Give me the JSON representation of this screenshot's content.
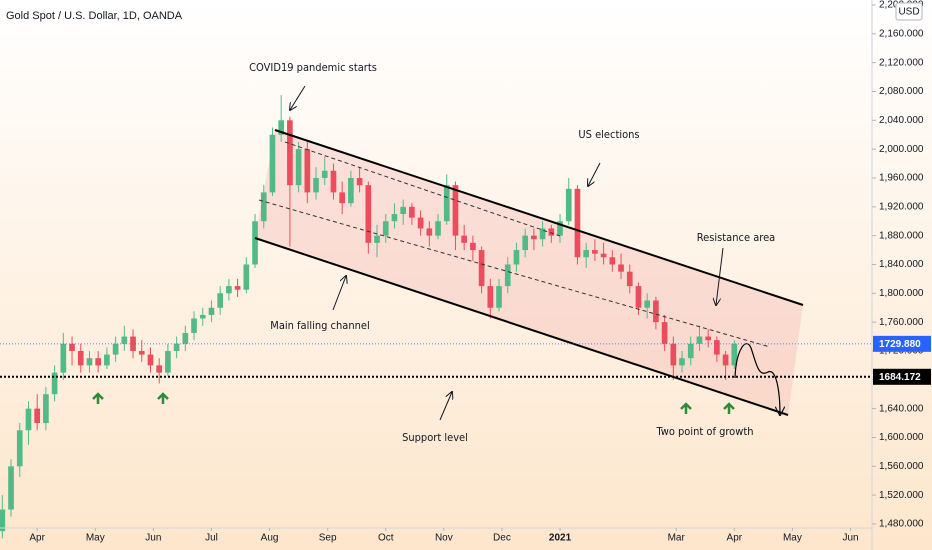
{
  "chart_data": {
    "type": "candlestick",
    "title": "Gold Spot / U.S. Dollar, 1D, OANDA",
    "currency": "USD",
    "colors": {
      "up": "#53b987",
      "down": "#eb4d5c"
    },
    "x": [
      -0.6,
      -0.45,
      -0.3,
      -0.15,
      0,
      0.15,
      0.3,
      0.45,
      0.6,
      0.75,
      0.9,
      1.05,
      1.2,
      1.35,
      1.5,
      1.65,
      1.8,
      1.95,
      2.1,
      2.25,
      2.4,
      2.55,
      2.7,
      2.85,
      3,
      3.15,
      3.3,
      3.45,
      3.6,
      3.75,
      3.9,
      4.05,
      4.2,
      4.35,
      4.5,
      4.65,
      4.8,
      4.95,
      5.1,
      5.25,
      5.4,
      5.55,
      5.7,
      5.85,
      6,
      6.15,
      6.3,
      6.45,
      6.6,
      6.75,
      6.9,
      7.05,
      7.2,
      7.35,
      7.5,
      7.65,
      7.8,
      7.95,
      8.1,
      8.25,
      8.4,
      8.55,
      8.7,
      8.85,
      9,
      9.15,
      9.3,
      9.45,
      9.6,
      9.75,
      9.9,
      10.05,
      10.2,
      10.35,
      10.5,
      10.65,
      10.8,
      10.95,
      11.1,
      11.25,
      11.4,
      11.55,
      11.7,
      11.85,
      12
    ],
    "open": [
      1470,
      1500,
      1560,
      1610,
      1640,
      1620,
      1660,
      1690,
      1730,
      1720,
      1700,
      1710,
      1700,
      1715,
      1730,
      1740,
      1720,
      1715,
      1700,
      1690,
      1720,
      1730,
      1745,
      1765,
      1770,
      1780,
      1800,
      1810,
      1805,
      1840,
      1900,
      1940,
      2020,
      2040,
      1950,
      2000,
      1940,
      1960,
      1970,
      1940,
      1925,
      1960,
      1950,
      1870,
      1880,
      1900,
      1910,
      1920,
      1905,
      1890,
      1880,
      1900,
      1950,
      1880,
      1870,
      1860,
      1810,
      1780,
      1810,
      1840,
      1860,
      1880,
      1875,
      1890,
      1880,
      1900,
      1945,
      1850,
      1860,
      1855,
      1850,
      1840,
      1830,
      1810,
      1780,
      1790,
      1760,
      1730,
      1700,
      1710,
      1730,
      1740,
      1735,
      1715,
      1700
    ],
    "high": [
      1520,
      1570,
      1620,
      1650,
      1660,
      1670,
      1700,
      1745,
      1740,
      1730,
      1720,
      1720,
      1725,
      1740,
      1755,
      1750,
      1735,
      1725,
      1710,
      1730,
      1740,
      1755,
      1775,
      1780,
      1790,
      1810,
      1820,
      1820,
      1850,
      1910,
      1950,
      2030,
      2075,
      2045,
      2010,
      2010,
      1975,
      1990,
      1980,
      1955,
      1970,
      1975,
      1955,
      1895,
      1910,
      1925,
      1930,
      1925,
      1915,
      1900,
      1910,
      1965,
      1955,
      1895,
      1880,
      1865,
      1820,
      1820,
      1850,
      1870,
      1890,
      1890,
      1900,
      1895,
      1910,
      1960,
      1950,
      1870,
      1875,
      1870,
      1860,
      1855,
      1840,
      1815,
      1800,
      1795,
      1770,
      1740,
      1720,
      1740,
      1755,
      1750,
      1740,
      1720,
      1735
    ],
    "low": [
      1460,
      1490,
      1545,
      1590,
      1610,
      1610,
      1650,
      1680,
      1700,
      1690,
      1690,
      1690,
      1695,
      1705,
      1720,
      1710,
      1705,
      1690,
      1675,
      1685,
      1710,
      1720,
      1735,
      1755,
      1760,
      1770,
      1790,
      1795,
      1800,
      1835,
      1890,
      1935,
      2010,
      1865,
      1940,
      1925,
      1930,
      1950,
      1930,
      1910,
      1920,
      1940,
      1855,
      1850,
      1870,
      1890,
      1895,
      1895,
      1880,
      1865,
      1875,
      1895,
      1860,
      1860,
      1845,
      1800,
      1765,
      1775,
      1800,
      1830,
      1850,
      1860,
      1865,
      1870,
      1870,
      1895,
      1840,
      1835,
      1845,
      1840,
      1830,
      1820,
      1800,
      1770,
      1765,
      1750,
      1720,
      1680,
      1690,
      1700,
      1720,
      1725,
      1705,
      1680,
      1695
    ],
    "close": [
      1500,
      1560,
      1610,
      1640,
      1620,
      1660,
      1690,
      1730,
      1720,
      1700,
      1710,
      1700,
      1715,
      1730,
      1740,
      1720,
      1715,
      1700,
      1690,
      1720,
      1730,
      1745,
      1765,
      1770,
      1780,
      1800,
      1810,
      1805,
      1840,
      1900,
      1940,
      2020,
      2040,
      1950,
      2000,
      1940,
      1960,
      1970,
      1940,
      1925,
      1960,
      1950,
      1870,
      1880,
      1900,
      1910,
      1920,
      1905,
      1890,
      1880,
      1900,
      1950,
      1880,
      1870,
      1860,
      1810,
      1780,
      1810,
      1840,
      1860,
      1880,
      1875,
      1890,
      1880,
      1900,
      1945,
      1850,
      1860,
      1855,
      1850,
      1840,
      1830,
      1810,
      1780,
      1790,
      1760,
      1730,
      1700,
      1710,
      1730,
      1740,
      1735,
      1715,
      1700,
      1730
    ],
    "xlim": [
      -0.64,
      14.37
    ],
    "xticks": [
      {
        "value": 0,
        "label": "Apr"
      },
      {
        "value": 1,
        "label": "May"
      },
      {
        "value": 2,
        "label": "Jun"
      },
      {
        "value": 3,
        "label": "Jul"
      },
      {
        "value": 4,
        "label": "Aug"
      },
      {
        "value": 5,
        "label": "Sep"
      },
      {
        "value": 6,
        "label": "Oct"
      },
      {
        "value": 7,
        "label": "Nov"
      },
      {
        "value": 8,
        "label": "Dec"
      },
      {
        "value": 9,
        "label": "2021"
      },
      {
        "value": 11,
        "label": "Mar"
      },
      {
        "value": 12,
        "label": "Apr"
      },
      {
        "value": 13,
        "label": "May"
      },
      {
        "value": 14,
        "label": "Jun"
      }
    ],
    "ylim": [
      1474.4,
      2206.9
    ],
    "yticks": [
      {
        "value": 1480,
        "label": "1,480.000"
      },
      {
        "value": 1520,
        "label": "1,520.000"
      },
      {
        "value": 1560,
        "label": "1,560.000"
      },
      {
        "value": 1600,
        "label": "1,600.000"
      },
      {
        "value": 1640,
        "label": "1,640.000"
      },
      {
        "value": 1680,
        "label": "1,680.000"
      },
      {
        "value": 1720,
        "label": "1,720.000"
      },
      {
        "value": 1760,
        "label": "1,760.000"
      },
      {
        "value": 1800,
        "label": "1,800.000"
      },
      {
        "value": 1840,
        "label": "1,840.000"
      },
      {
        "value": 1880,
        "label": "1,880.000"
      },
      {
        "value": 1920,
        "label": "1,920.000"
      },
      {
        "value": 1960,
        "label": "1,960.000"
      },
      {
        "value": 2000,
        "label": "2,000.000"
      },
      {
        "value": 2040,
        "label": "2,040.000"
      },
      {
        "value": 2080,
        "label": "2,080.000"
      },
      {
        "value": 2120,
        "label": "2,120.000"
      },
      {
        "value": 2160,
        "label": "2,160.000"
      },
      {
        "value": 2200,
        "label": "2,200.000"
      }
    ],
    "price_lines": [
      {
        "value": 1729.88,
        "label": "1729.880",
        "color": "#2962ff"
      },
      {
        "value": 1684.172,
        "label": "1684.172",
        "color": "#000000"
      }
    ],
    "annotations": [
      "COVID19 pandemic starts",
      "US elections",
      "Resistance area",
      "Main falling channel",
      "Support level",
      "Two point of growth"
    ]
  }
}
